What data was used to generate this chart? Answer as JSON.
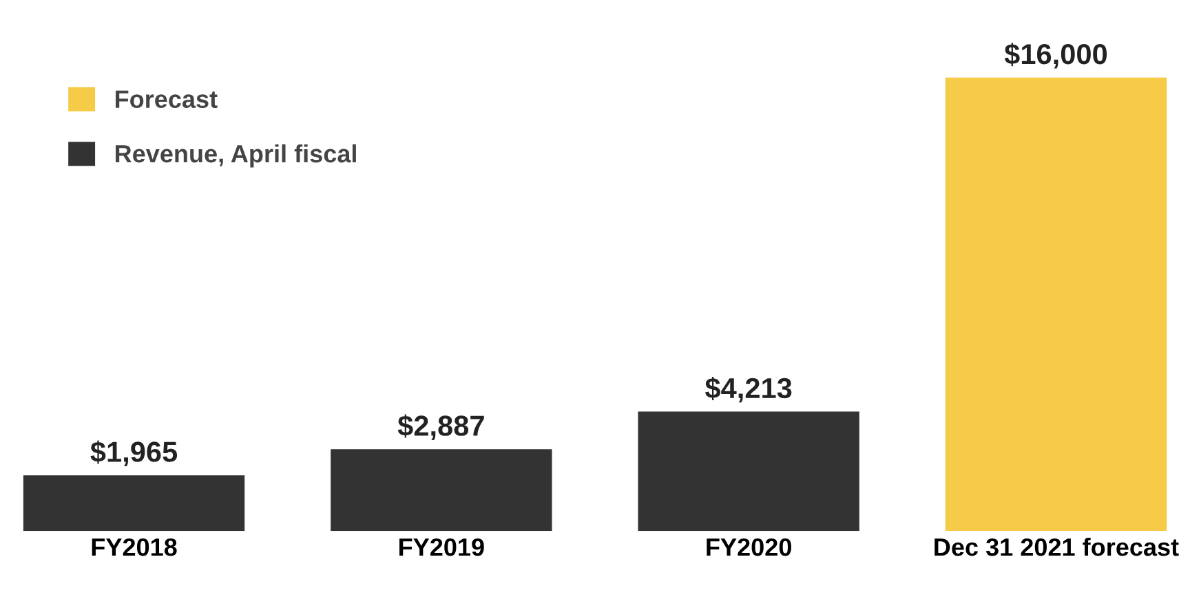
{
  "chart_data": {
    "type": "bar",
    "categories": [
      "FY2018",
      "FY2019",
      "FY2020",
      "Dec 31 2021 forecast"
    ],
    "series": [
      {
        "name": "Forecast",
        "color": "#f5cb47",
        "values": [
          null,
          null,
          null,
          16000
        ],
        "value_labels": [
          null,
          null,
          null,
          "$16,000"
        ]
      },
      {
        "name": "Revenue, April fiscal",
        "color": "#333333",
        "values": [
          1965,
          2887,
          4213,
          null
        ],
        "value_labels": [
          "$1,965",
          "$2,887",
          "$4,213",
          null
        ]
      }
    ],
    "legend": "top left",
    "grid": false,
    "tick_labels": "x"
  }
}
